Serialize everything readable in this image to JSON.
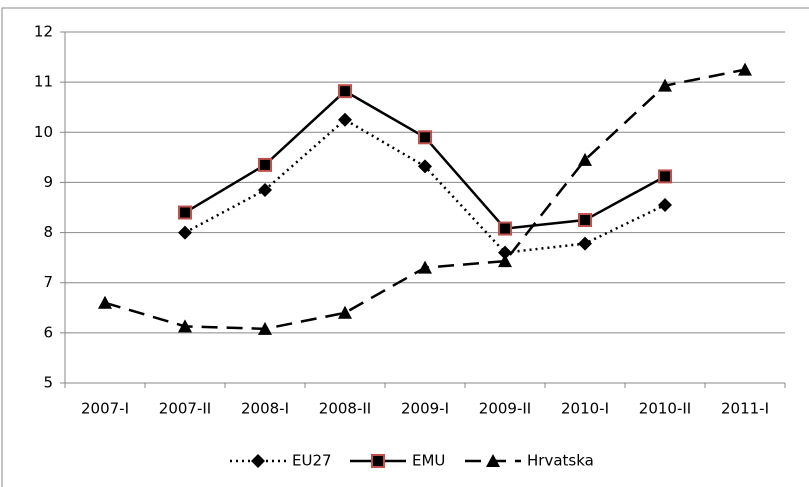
{
  "chart_data": {
    "type": "line",
    "categories": [
      "2007-I",
      "2007-II",
      "2008-I",
      "2008-II",
      "2009-I",
      "2009-II",
      "2010-I",
      "2010-II",
      "2011-I"
    ],
    "series": [
      {
        "name": "EU27",
        "color": "#000000",
        "dash": "dotted",
        "marker": "diamond",
        "values": [
          null,
          8.0,
          8.85,
          10.25,
          9.32,
          7.6,
          7.78,
          8.55,
          null
        ]
      },
      {
        "name": "EMU",
        "color": "#000000",
        "dash": "solid",
        "marker": "square",
        "marker_stroke": "#c0504d",
        "values": [
          null,
          8.4,
          9.35,
          10.82,
          9.9,
          8.08,
          8.25,
          9.12,
          null
        ]
      },
      {
        "name": "Hrvatska",
        "color": "#000000",
        "dash": "dashed",
        "marker": "triangle",
        "values": [
          6.6,
          6.13,
          6.08,
          6.4,
          7.3,
          7.43,
          9.45,
          10.93,
          11.25
        ]
      }
    ],
    "ylim": [
      5,
      12
    ],
    "yticks": [
      5,
      6,
      7,
      8,
      9,
      10,
      11,
      12
    ],
    "grid": true,
    "legend": "bottom"
  }
}
